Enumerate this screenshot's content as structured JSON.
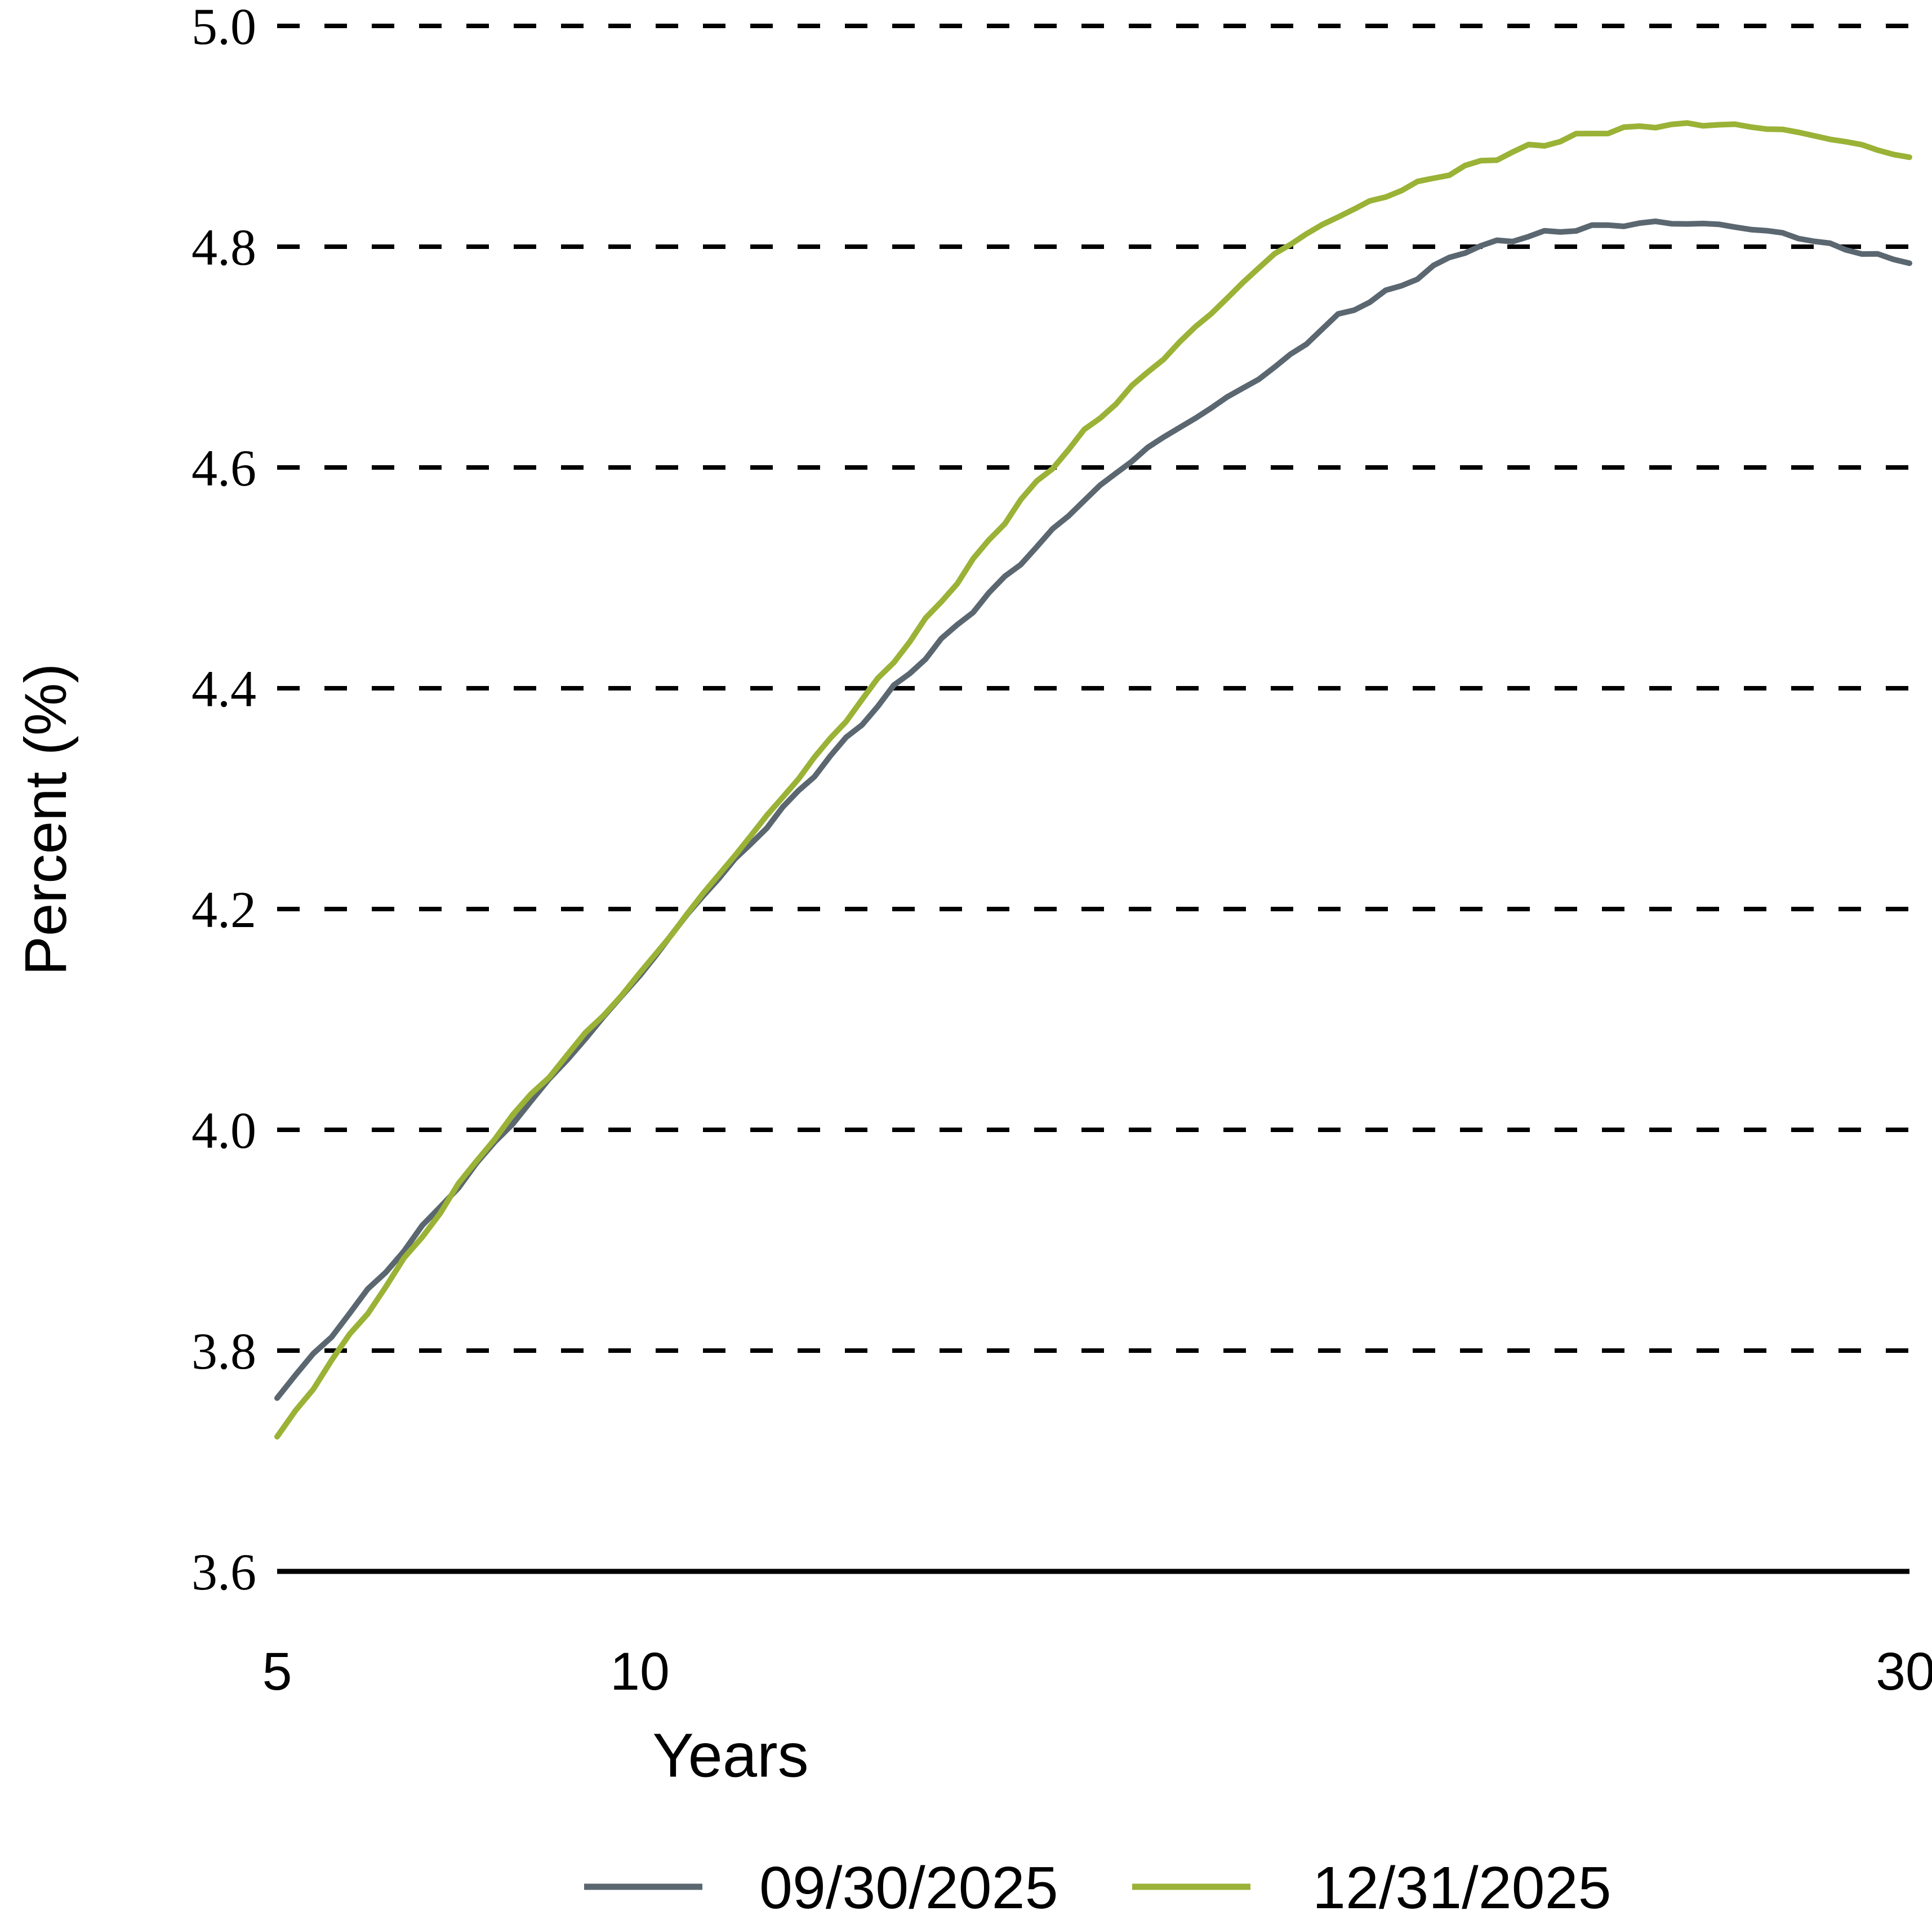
{
  "chart_data": {
    "type": "line",
    "title": "",
    "xlabel": "Years",
    "ylabel": "Percent (%)",
    "grid": "dashed-horizontal",
    "legend_position": "bottom",
    "xlim": [
      5,
      30
    ],
    "ylim": [
      3.6,
      5.0
    ],
    "x_ticks": [
      5,
      10,
      30
    ],
    "x_tick_labels": [
      "5",
      "10",
      "30"
    ],
    "y_ticks": [
      5.0,
      4.8,
      4.6,
      4.4,
      4.2,
      4.0,
      3.8,
      3.6
    ],
    "y_tick_labels": [
      "5.0",
      "4.8",
      "4.6",
      "4.4",
      "4.2",
      "4.0",
      "3.8",
      "3.6"
    ],
    "x": [
      5,
      6,
      7,
      8,
      9,
      10,
      11,
      12,
      13,
      14,
      15,
      16,
      17,
      18,
      19,
      20,
      21,
      22,
      23,
      24,
      25,
      26,
      27,
      28,
      29,
      30
    ],
    "series": [
      {
        "name": "09/30/2025",
        "color": "#5B6770",
        "values": [
          3.757,
          3.834,
          3.911,
          3.988,
          4.064,
          4.14,
          4.213,
          4.275,
          4.338,
          4.4,
          4.457,
          4.514,
          4.571,
          4.618,
          4.654,
          4.69,
          4.737,
          4.765,
          4.797,
          4.81,
          4.818,
          4.822,
          4.82,
          4.812,
          4.798,
          4.785
        ]
      },
      {
        "name": "12/31/2025",
        "color": "#9AB236",
        "values": [
          3.722,
          3.813,
          3.904,
          3.994,
          4.068,
          4.141,
          4.214,
          4.284,
          4.354,
          4.425,
          4.497,
          4.57,
          4.632,
          4.686,
          4.74,
          4.794,
          4.828,
          4.852,
          4.872,
          4.89,
          4.903,
          4.91,
          4.911,
          4.906,
          4.895,
          4.881
        ]
      }
    ]
  },
  "colors": {
    "axis": "#000000",
    "grid": "#000000",
    "background": "#ffffff"
  }
}
